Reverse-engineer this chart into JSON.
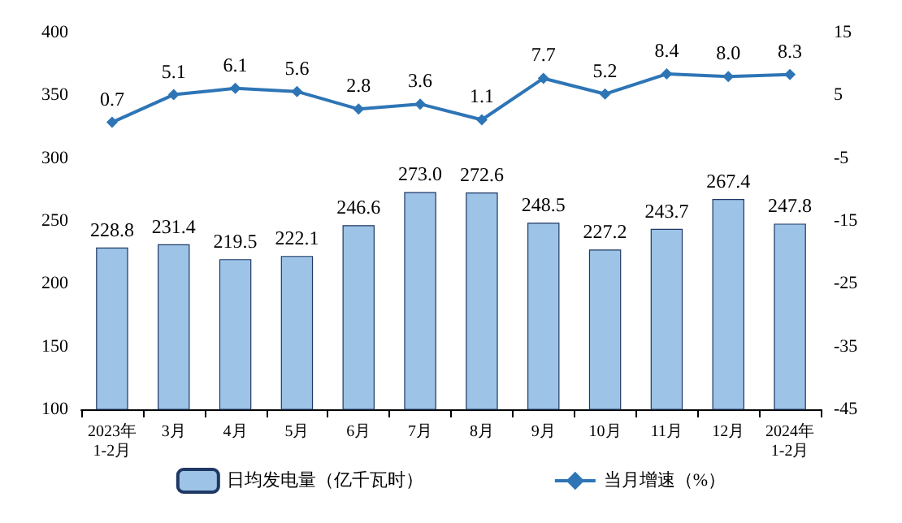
{
  "chart_data": {
    "type": "bar",
    "categories": [
      "2023年\n1-2月",
      "3月",
      "4月",
      "5月",
      "6月",
      "7月",
      "8月",
      "9月",
      "10月",
      "11月",
      "12月",
      "2024年\n1-2月"
    ],
    "series": [
      {
        "name": "日均发电量（亿千瓦时）",
        "color": "#9dc3e6",
        "values": [
          228.8,
          231.4,
          219.5,
          222.1,
          246.6,
          273.0,
          272.6,
          248.5,
          227.2,
          243.7,
          267.4,
          247.8
        ],
        "value_labels": [
          "228.8",
          "231.4",
          "219.5",
          "222.1",
          "246.6",
          "273.0",
          "272.6",
          "248.5",
          "227.2",
          "243.7",
          "267.4",
          "247.8"
        ]
      },
      {
        "name": "当月增速（%）",
        "type": "line",
        "axis": "y2",
        "color": "#2e75b6",
        "marker": "diamond",
        "values": [
          0.7,
          5.1,
          6.1,
          5.6,
          2.8,
          3.6,
          1.1,
          7.7,
          5.2,
          8.4,
          8.0,
          8.3
        ],
        "value_labels": [
          "0.7",
          "5.1",
          "6.1",
          "5.6",
          "2.8",
          "3.6",
          "1.1",
          "7.7",
          "5.2",
          "8.4",
          "8.0",
          "8.3"
        ]
      }
    ],
    "ylim": [
      100,
      400
    ],
    "yticks": [
      100,
      150,
      200,
      250,
      300,
      350,
      400
    ],
    "y2lim": [
      -45,
      15
    ],
    "y2ticks": [
      -45,
      -35,
      -25,
      -15,
      -5,
      5,
      15
    ],
    "grid": false,
    "legend": "bottom"
  }
}
